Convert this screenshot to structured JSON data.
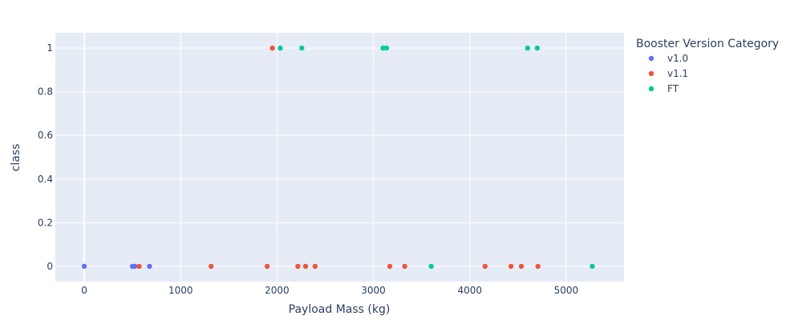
{
  "chart_data": {
    "type": "scatter",
    "xlabel": "Payload Mass (kg)",
    "ylabel": "class",
    "xlim": [
      -300,
      5600
    ],
    "ylim": [
      -0.07,
      1.07
    ],
    "x_ticks": [
      0,
      1000,
      2000,
      3000,
      4000,
      5000
    ],
    "x_tick_labels": [
      "0",
      "1000",
      "2000",
      "3000",
      "4000",
      "5000"
    ],
    "y_ticks": [
      0,
      0.2,
      0.4,
      0.6,
      0.8,
      1
    ],
    "y_tick_labels": [
      "0",
      "0.2",
      "0.4",
      "0.6",
      "0.8",
      "1"
    ],
    "grid": true,
    "legend": {
      "title": "Booster Version Category",
      "placement": "top-right"
    },
    "series": [
      {
        "name": "v1.0",
        "color": "#636efa",
        "x": [
          0,
          500,
          525,
          677
        ],
        "y": [
          0,
          0,
          0,
          0
        ]
      },
      {
        "name": "v1.1",
        "color": "#ef553b",
        "x": [
          570,
          1316,
          1898,
          1952,
          2216,
          2296,
          2395,
          3170,
          3325,
          4159,
          4428,
          4535,
          4707
        ],
        "y": [
          0,
          0,
          0,
          1,
          0,
          0,
          0,
          0,
          0,
          0,
          0,
          0,
          0
        ]
      },
      {
        "name": "FT",
        "color": "#00cc96",
        "x": [
          2034,
          2257,
          3100,
          3136,
          3600,
          4600,
          4700,
          5271
        ],
        "y": [
          1,
          1,
          1,
          1,
          0,
          1,
          1,
          0
        ]
      }
    ]
  }
}
